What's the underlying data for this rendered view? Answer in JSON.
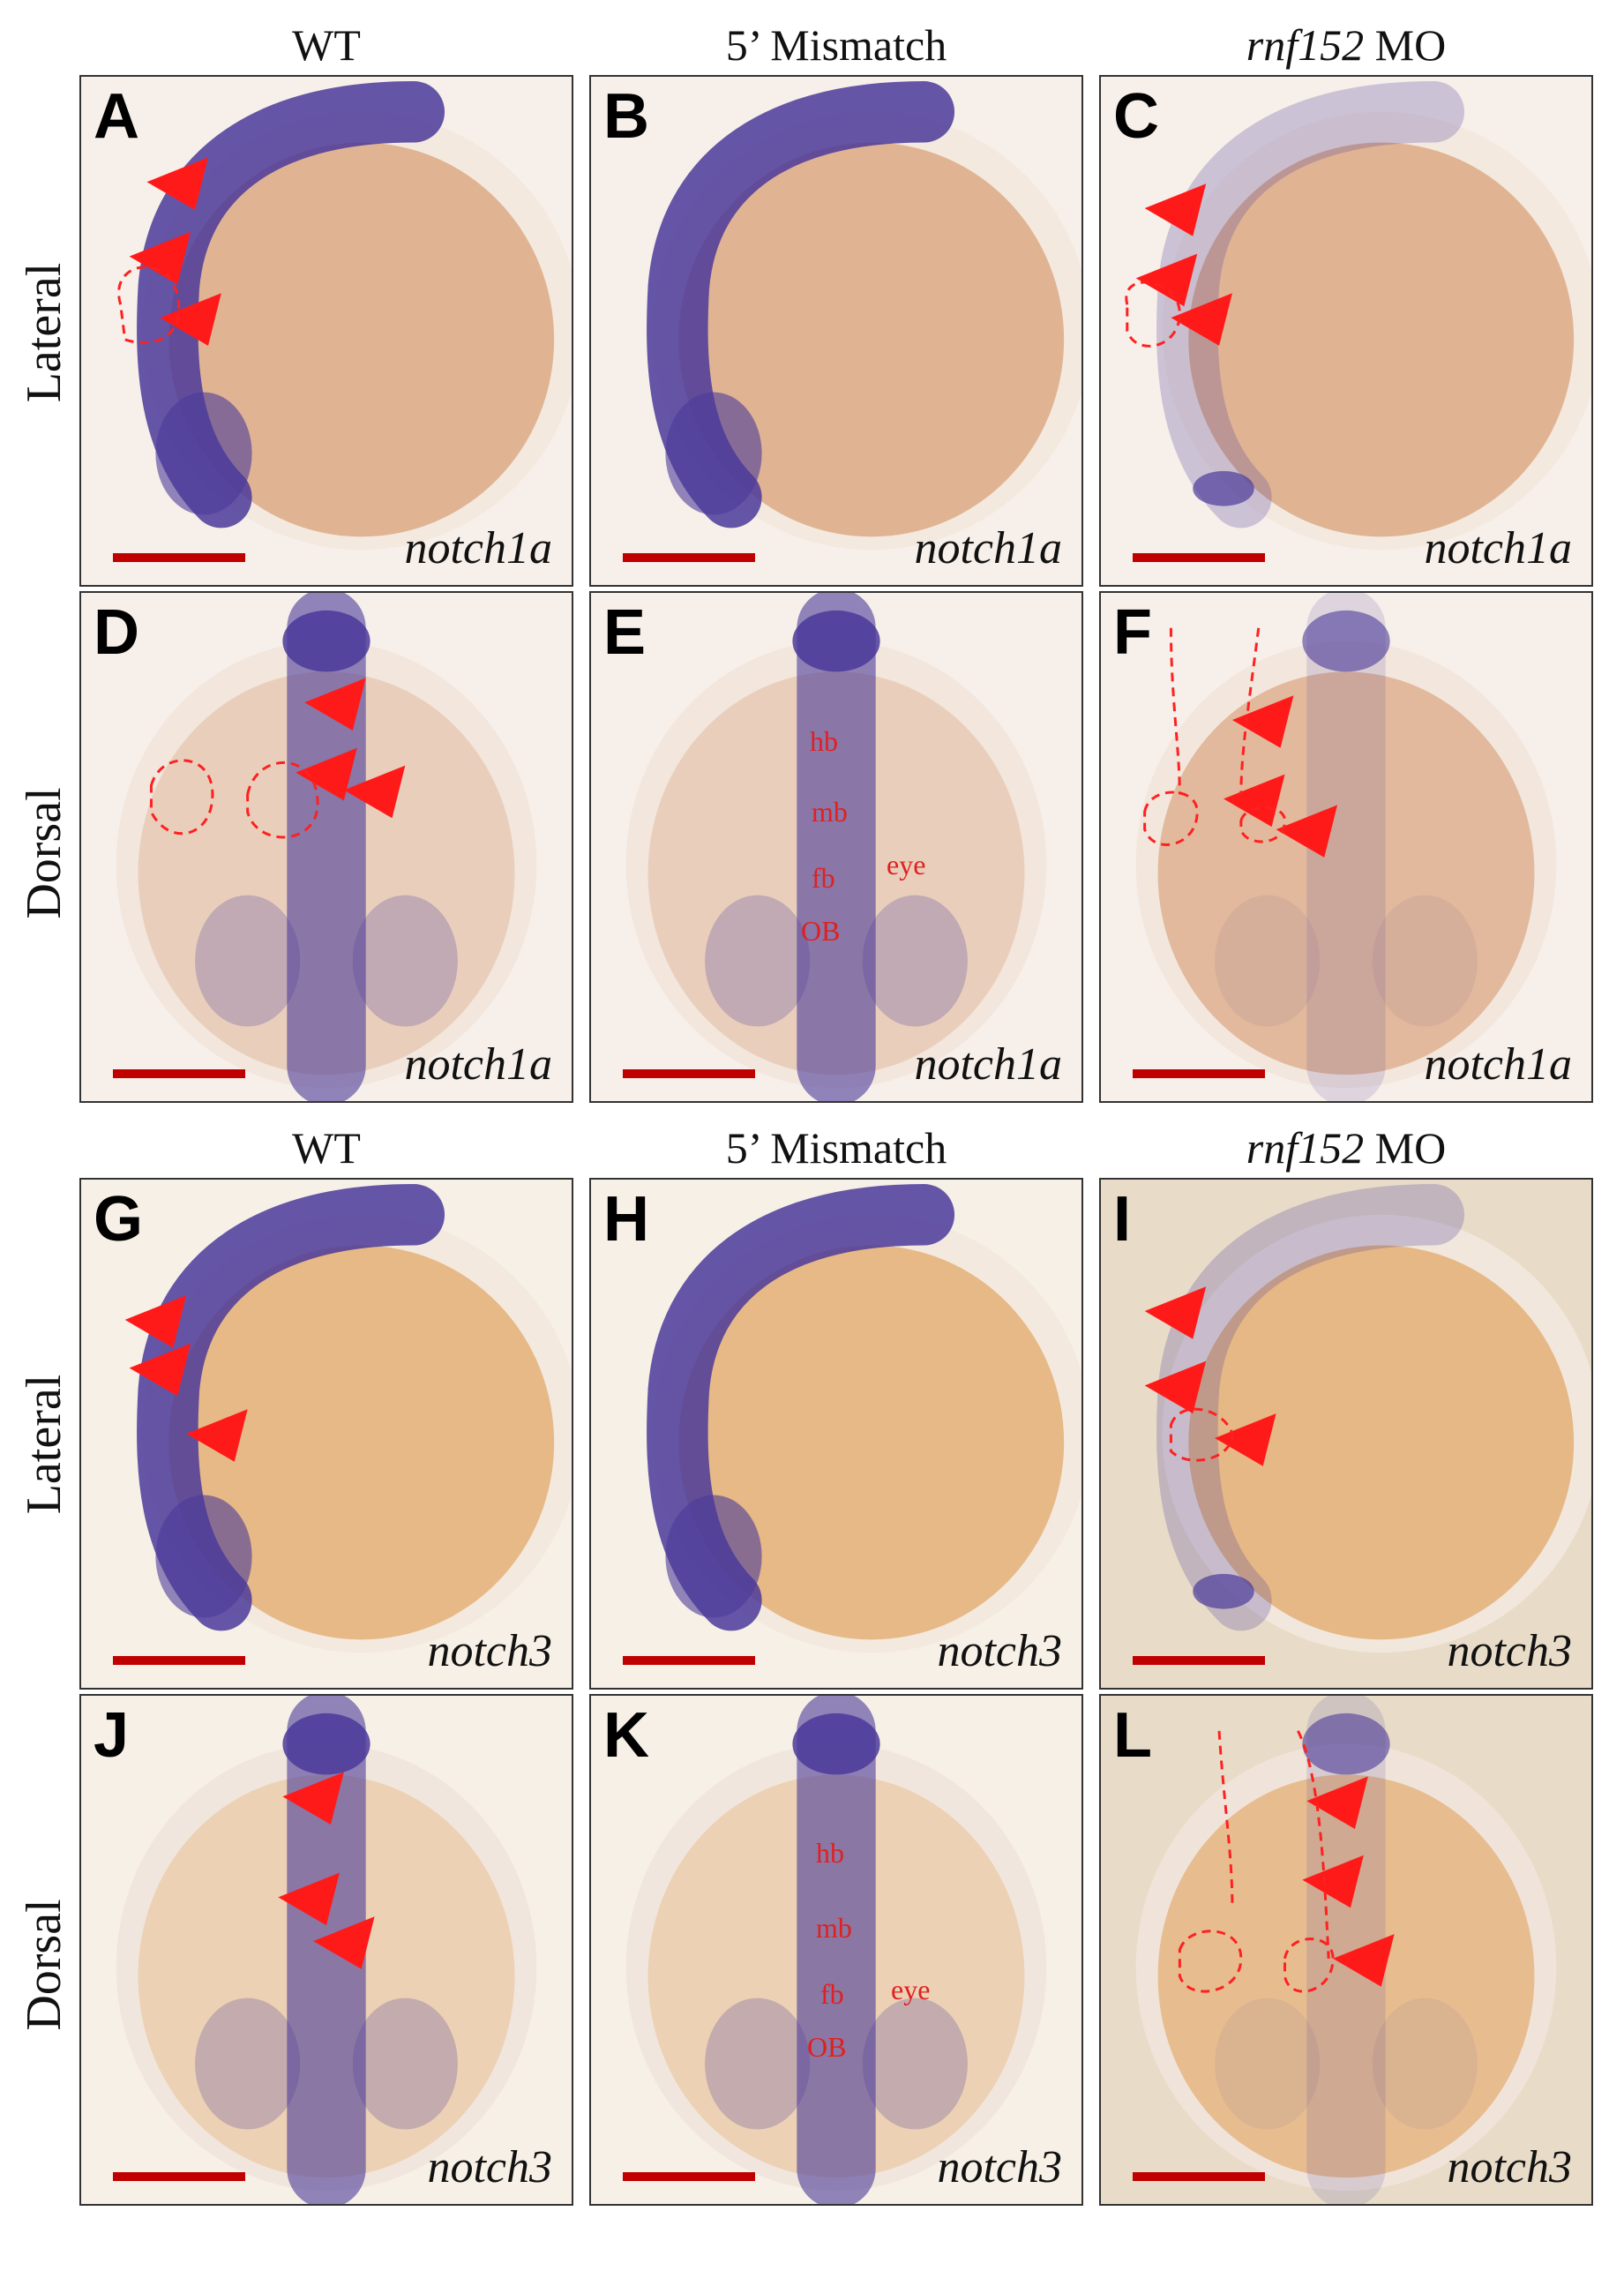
{
  "top_headers": [
    "WT",
    "5’ Mismatch",
    "rnf152",
    "MO"
  ],
  "bottom_headers": [
    "WT",
    "5’ Mismatch",
    "rnf152",
    "MO"
  ],
  "row_labels": [
    "Lateral",
    "Dorsal",
    "Lateral",
    "Dorsal"
  ],
  "panels": [
    {
      "letter": "A",
      "gene": "notch1a"
    },
    {
      "letter": "B",
      "gene": "notch1a"
    },
    {
      "letter": "C",
      "gene": "notch1a"
    },
    {
      "letter": "D",
      "gene": "notch1a"
    },
    {
      "letter": "E",
      "gene": "notch1a",
      "labels": [
        "hb",
        "mb",
        "fb",
        "OB",
        "eye"
      ]
    },
    {
      "letter": "F",
      "gene": "notch1a"
    },
    {
      "letter": "G",
      "gene": "notch3"
    },
    {
      "letter": "H",
      "gene": "notch3"
    },
    {
      "letter": "I",
      "gene": "notch3"
    },
    {
      "letter": "J",
      "gene": "notch3"
    },
    {
      "letter": "K",
      "gene": "notch3",
      "labels": [
        "hb",
        "mb",
        "fb",
        "OB",
        "eye"
      ]
    },
    {
      "letter": "L",
      "gene": "notch3"
    }
  ],
  "colors": {
    "arrow": "#ff1a1a",
    "scale_bar": "#c00000",
    "stain": "#4b3a9a",
    "yolk": "#d9a27a"
  }
}
